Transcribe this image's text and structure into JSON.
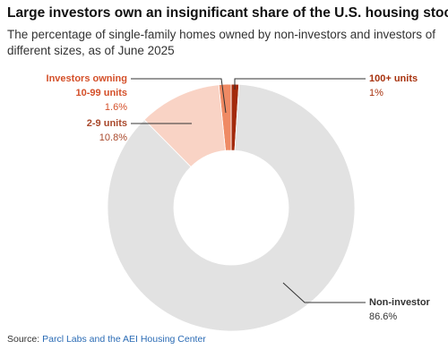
{
  "chart_data": {
    "type": "donut",
    "title": "Large investors own an insignificant share of the U.S. housing stock",
    "subtitle": "The percentage of single-family homes owned by non-investors and investors of different sizes, as of June 2025",
    "categories": [
      "100+ units",
      "10-99 units",
      "2-9 units",
      "Non-investor"
    ],
    "values": [
      1,
      1.6,
      10.8,
      86.6
    ],
    "value_labels": [
      "1%",
      "1.6%",
      "10.8%",
      "86.6%"
    ],
    "colors": [
      "#a32a0c",
      "#ef8a64",
      "#f9d3c5",
      "#e2e2e2"
    ],
    "label_colors": [
      "#a8330f",
      "#d4502a",
      "#a9492c",
      "#333333"
    ],
    "annotation": "Investors owning",
    "source_label": "Source:",
    "source": "Parcl Labs and the AEI Housing Center"
  }
}
